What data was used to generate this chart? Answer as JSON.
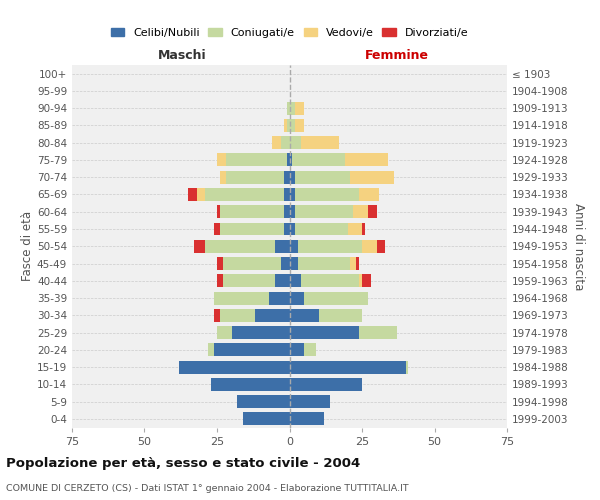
{
  "age_groups": [
    "0-4",
    "5-9",
    "10-14",
    "15-19",
    "20-24",
    "25-29",
    "30-34",
    "35-39",
    "40-44",
    "45-49",
    "50-54",
    "55-59",
    "60-64",
    "65-69",
    "70-74",
    "75-79",
    "80-84",
    "85-89",
    "90-94",
    "95-99",
    "100+"
  ],
  "birth_years": [
    "1999-2003",
    "1994-1998",
    "1989-1993",
    "1984-1988",
    "1979-1983",
    "1974-1978",
    "1969-1973",
    "1964-1968",
    "1959-1963",
    "1954-1958",
    "1949-1953",
    "1944-1948",
    "1939-1943",
    "1934-1938",
    "1929-1933",
    "1924-1928",
    "1919-1923",
    "1914-1918",
    "1909-1913",
    "1904-1908",
    "≤ 1903"
  ],
  "male": {
    "celibi": [
      16,
      18,
      27,
      38,
      26,
      20,
      12,
      7,
      5,
      3,
      5,
      2,
      2,
      2,
      2,
      1,
      0,
      0,
      0,
      0,
      0
    ],
    "coniugati": [
      0,
      0,
      0,
      0,
      2,
      5,
      12,
      19,
      18,
      20,
      24,
      22,
      22,
      27,
      20,
      21,
      3,
      1,
      1,
      0,
      0
    ],
    "vedovi": [
      0,
      0,
      0,
      0,
      0,
      0,
      0,
      0,
      0,
      0,
      0,
      0,
      0,
      3,
      2,
      3,
      3,
      1,
      0,
      0,
      0
    ],
    "divorziati": [
      0,
      0,
      0,
      0,
      0,
      0,
      2,
      0,
      2,
      2,
      4,
      2,
      1,
      3,
      0,
      0,
      0,
      0,
      0,
      0,
      0
    ]
  },
  "female": {
    "nubili": [
      12,
      14,
      25,
      40,
      5,
      24,
      10,
      5,
      4,
      3,
      3,
      2,
      2,
      2,
      2,
      1,
      0,
      0,
      0,
      0,
      0
    ],
    "coniugate": [
      0,
      0,
      0,
      1,
      4,
      13,
      15,
      22,
      20,
      18,
      22,
      18,
      20,
      22,
      19,
      18,
      4,
      2,
      2,
      0,
      0
    ],
    "vedove": [
      0,
      0,
      0,
      0,
      0,
      0,
      0,
      0,
      1,
      2,
      5,
      5,
      5,
      7,
      15,
      15,
      13,
      3,
      3,
      0,
      0
    ],
    "divorziate": [
      0,
      0,
      0,
      0,
      0,
      0,
      0,
      0,
      3,
      1,
      3,
      1,
      3,
      0,
      0,
      0,
      0,
      0,
      0,
      0,
      0
    ]
  },
  "colors": {
    "celibi": "#3d6fa8",
    "coniugati": "#c5d9a0",
    "vedovi": "#f5d280",
    "divorziati": "#d93030"
  },
  "title": "Popolazione per età, sesso e stato civile - 2004",
  "subtitle": "COMUNE DI CERZETO (CS) - Dati ISTAT 1° gennaio 2004 - Elaborazione TUTTITALIA.IT",
  "ylabel_left": "Fasce di età",
  "ylabel_right": "Anni di nascita",
  "xlabel_left": "Maschi",
  "xlabel_right": "Femmine",
  "xlim": 75,
  "legend_labels": [
    "Celibi/Nubili",
    "Coniugati/e",
    "Vedovi/e",
    "Divorziati/e"
  ],
  "background_color": "#f0f0f0"
}
